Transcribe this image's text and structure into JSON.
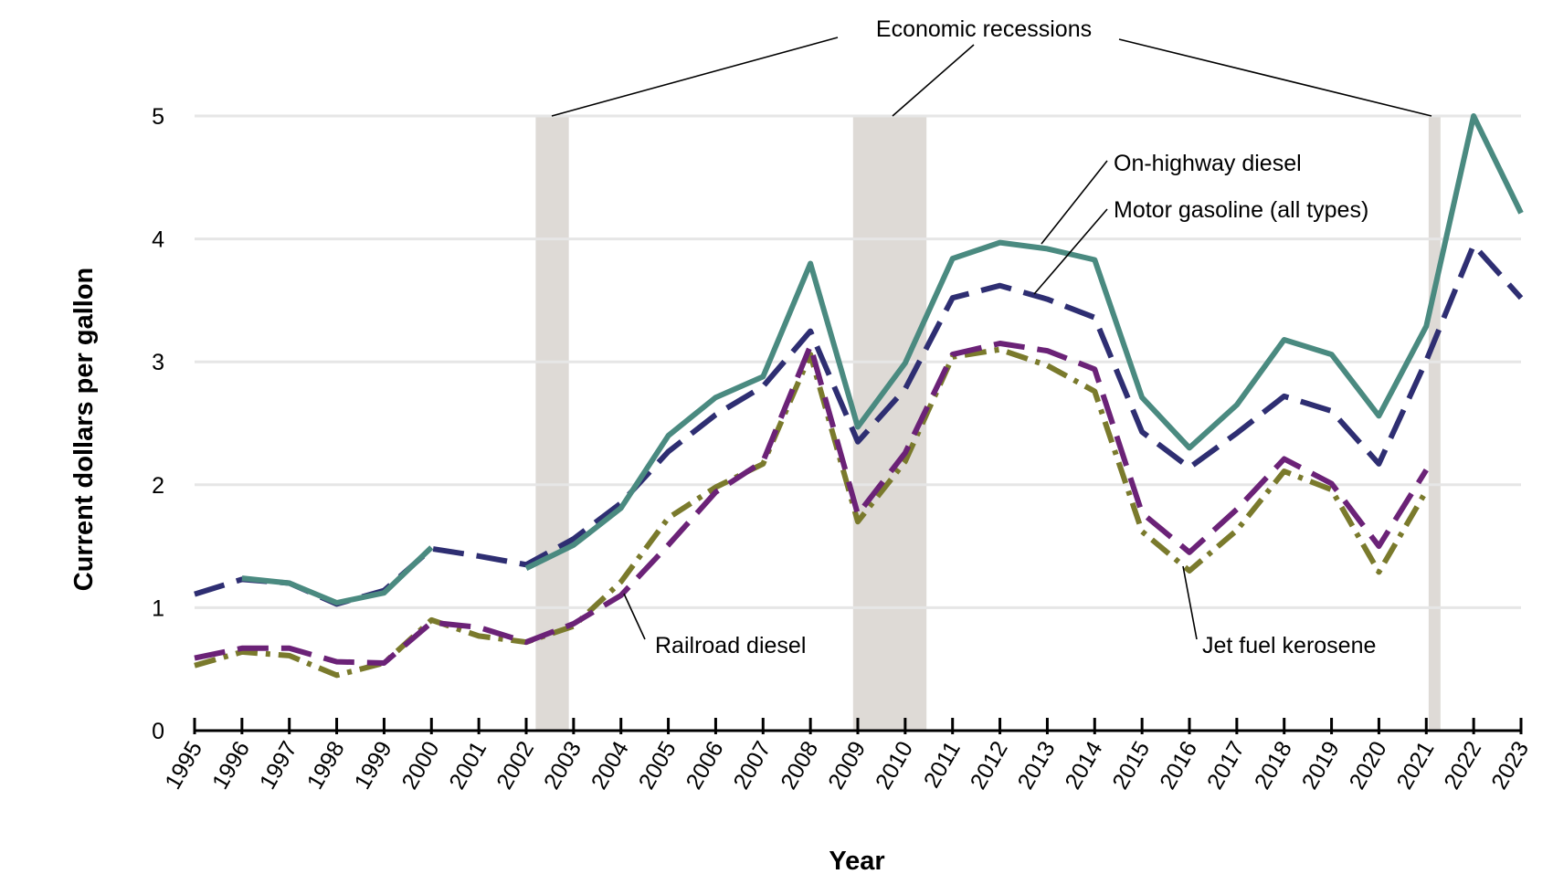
{
  "chart_data": {
    "type": "line",
    "xlabel": "Year",
    "ylabel": "Current dollars per gallon",
    "ylim": [
      0,
      5
    ],
    "yticks": [
      "0",
      "1",
      "2",
      "3",
      "4",
      "5"
    ],
    "x": [
      "1995",
      "1996",
      "1997",
      "1998",
      "1999",
      "2000",
      "2001",
      "2002",
      "2003",
      "2004",
      "2005",
      "2006",
      "2007",
      "2008",
      "2009",
      "2010",
      "2011",
      "2012",
      "2013",
      "2014",
      "2015",
      "2016",
      "2017",
      "2018",
      "2019",
      "2020",
      "2021",
      "2022",
      "2023"
    ],
    "grid": "horizontal",
    "series": [
      {
        "name": "On-highway diesel",
        "color": "#4a8a80",
        "style": "solid",
        "values": [
          null,
          1.24,
          1.2,
          1.04,
          1.12,
          1.49,
          null,
          1.32,
          1.51,
          1.81,
          2.4,
          2.71,
          2.88,
          3.8,
          2.47,
          2.99,
          3.84,
          3.97,
          3.92,
          3.83,
          2.71,
          2.3,
          2.65,
          3.18,
          3.06,
          2.56,
          3.29,
          5.0,
          4.21
        ]
      },
      {
        "name": "Motor gasoline (all types)",
        "color": "#2e2e72",
        "style": "dashed",
        "values": [
          1.11,
          1.23,
          1.2,
          1.03,
          1.14,
          1.48,
          1.42,
          1.35,
          1.56,
          1.85,
          2.27,
          2.57,
          2.8,
          3.25,
          2.35,
          2.78,
          3.52,
          3.62,
          3.51,
          3.36,
          2.43,
          2.14,
          2.42,
          2.72,
          2.6,
          2.17,
          3.01,
          3.95,
          3.52
        ]
      },
      {
        "name": "Railroad diesel",
        "color": "#6b2277",
        "style": "dashed",
        "values": [
          0.59,
          0.67,
          0.67,
          0.56,
          0.55,
          0.88,
          0.84,
          0.72,
          0.87,
          1.1,
          1.51,
          1.94,
          2.19,
          3.13,
          1.76,
          2.26,
          3.06,
          3.15,
          3.09,
          2.94,
          1.77,
          1.45,
          1.8,
          2.21,
          2.01,
          1.5,
          2.12,
          null,
          null
        ]
      },
      {
        "name": "Jet fuel kerosene",
        "color": "#7a7a2c",
        "style": "dashdot",
        "values": [
          0.53,
          0.64,
          0.61,
          0.45,
          0.55,
          0.9,
          0.77,
          0.72,
          0.85,
          1.21,
          1.73,
          1.98,
          2.17,
          3.06,
          1.7,
          2.19,
          3.04,
          3.1,
          2.97,
          2.76,
          1.62,
          1.3,
          1.63,
          2.11,
          1.96,
          1.29,
          1.95,
          null,
          null
        ]
      }
    ],
    "recessions": [
      {
        "start": 2002.2,
        "end": 2002.9
      },
      {
        "start": 2008.9,
        "end": 2010.45
      },
      {
        "start": 2021.05,
        "end": 2021.3
      }
    ],
    "annotations": {
      "recessions_label": "Economic recessions",
      "on_highway": "On-highway diesel",
      "motor_gasoline": "Motor gasoline (all types)",
      "railroad": "Railroad diesel",
      "jet_fuel": "Jet fuel kerosene"
    }
  }
}
